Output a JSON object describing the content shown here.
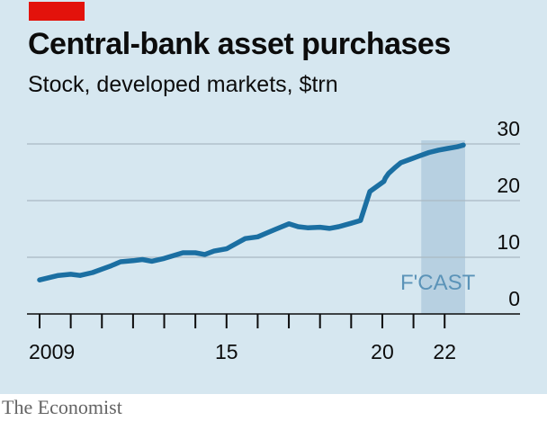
{
  "header": {
    "title": "Central-bank asset purchases",
    "subtitle": "Stock, developed markets, $trn"
  },
  "footer": {
    "source": "The Economist"
  },
  "colors": {
    "background": "#d6e7f0",
    "line": "#1b6fa2",
    "forecast_band": "#b7d0e1",
    "forecast_label": "#5b93b8",
    "accent": "#e3120b"
  },
  "chart_data": {
    "type": "line",
    "title": "Central-bank asset purchases",
    "subtitle": "Stock, developed markets, $trn",
    "xlabel": "",
    "ylabel": "",
    "xlim": [
      2009,
      2023
    ],
    "ylim": [
      0,
      30
    ],
    "x_tick_labels": [
      {
        "value": 2009,
        "label": "2009"
      },
      {
        "value": 2015,
        "label": "15"
      },
      {
        "value": 2020,
        "label": "20"
      },
      {
        "value": 2022,
        "label": "22"
      }
    ],
    "y_ticks": [
      0,
      10,
      20,
      30
    ],
    "grid": true,
    "forecast": {
      "label": "F'CAST",
      "start": 2021.25,
      "end": 2022.6
    },
    "series": [
      {
        "x": [
          2009.0,
          2009.3,
          2009.6,
          2010.0,
          2010.3,
          2010.7,
          2011.0,
          2011.3,
          2011.6,
          2012.0,
          2012.3,
          2012.6,
          2013.0,
          2013.3,
          2013.6,
          2014.0,
          2014.3,
          2014.6,
          2015.0,
          2015.3,
          2015.6,
          2016.0,
          2016.3,
          2016.6,
          2017.0,
          2017.3,
          2017.6,
          2018.0,
          2018.3,
          2018.6,
          2019.0,
          2019.3,
          2019.6,
          2019.9,
          2020.05,
          2020.1,
          2020.2,
          2020.4,
          2020.6,
          2020.9,
          2021.2,
          2021.5,
          2021.8,
          2022.1,
          2022.4,
          2022.6
        ],
        "values": [
          6.0,
          6.4,
          6.8,
          7.0,
          6.8,
          7.3,
          7.9,
          8.5,
          9.2,
          9.4,
          9.6,
          9.3,
          9.8,
          10.3,
          10.8,
          10.8,
          10.5,
          11.1,
          11.5,
          12.4,
          13.3,
          13.6,
          14.3,
          15.0,
          15.9,
          15.4,
          15.2,
          15.3,
          15.1,
          15.4,
          16.0,
          16.5,
          21.6,
          22.8,
          23.4,
          24.0,
          24.8,
          25.8,
          26.7,
          27.3,
          27.9,
          28.5,
          28.9,
          29.2,
          29.5,
          29.8
        ]
      }
    ]
  }
}
